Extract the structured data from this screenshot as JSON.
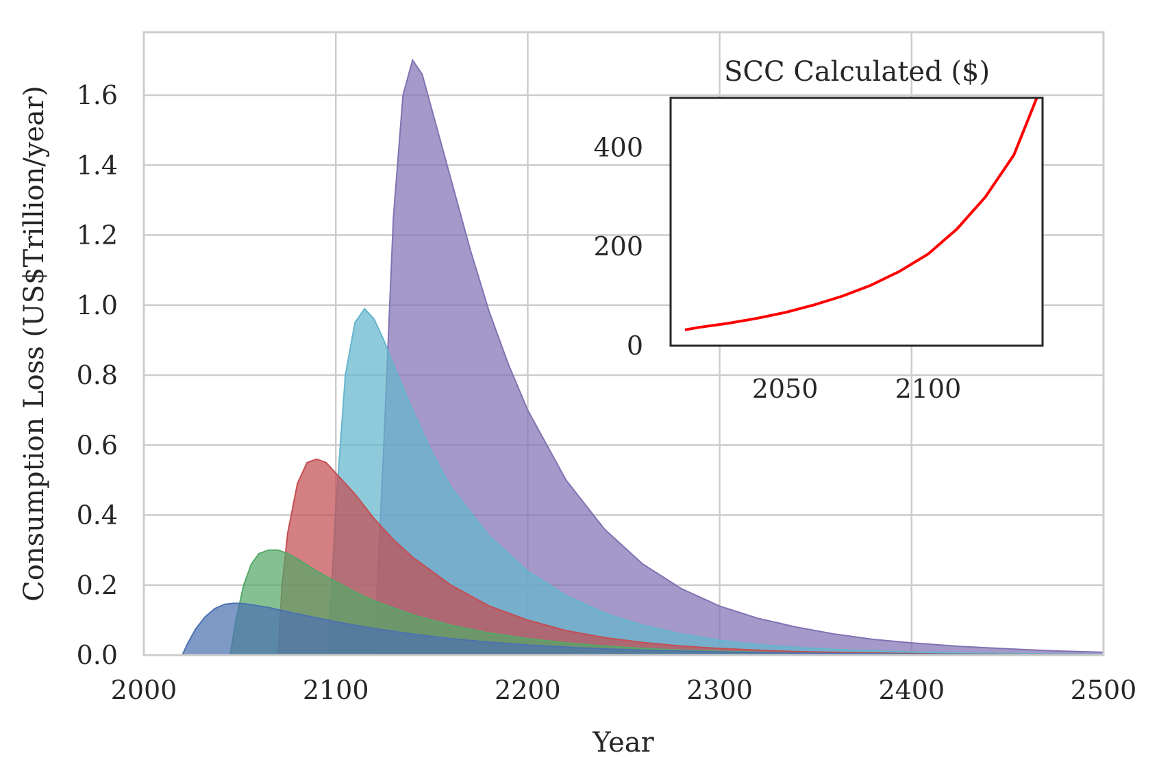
{
  "chart_data": [
    {
      "type": "area",
      "xlabel": "Year",
      "ylabel": "Consumption Loss (US$Trillion/year)",
      "xlim": [
        2000,
        2500
      ],
      "ylim": [
        0,
        1.78
      ],
      "xticks": [
        2000,
        2100,
        2200,
        2300,
        2400,
        2500
      ],
      "xtick_labels": [
        "2000",
        "2100",
        "2200",
        "2300",
        "2400",
        "2500"
      ],
      "yticks": [
        0,
        0.2,
        0.4,
        0.6,
        0.8,
        1.0,
        1.2,
        1.4,
        1.6
      ],
      "ytick_labels": [
        "0.0",
        "0.2",
        "0.4",
        "0.6",
        "0.8",
        "1.0",
        "1.2",
        "1.4",
        "1.6"
      ],
      "grid": true,
      "series": [
        {
          "color": "#8172b3",
          "x": [
            2120,
            2125,
            2130,
            2135,
            2140,
            2145,
            2150,
            2160,
            2170,
            2180,
            2190,
            2200,
            2220,
            2240,
            2260,
            2280,
            2300,
            2320,
            2340,
            2360,
            2380,
            2400,
            2425,
            2450,
            2475,
            2500
          ],
          "y": [
            0,
            0.6,
            1.25,
            1.6,
            1.7,
            1.66,
            1.56,
            1.36,
            1.16,
            0.98,
            0.83,
            0.7,
            0.5,
            0.36,
            0.26,
            0.19,
            0.14,
            0.105,
            0.08,
            0.06,
            0.045,
            0.035,
            0.025,
            0.018,
            0.012,
            0.008
          ]
        },
        {
          "color": "#64b5cd",
          "x": [
            2096,
            2100,
            2105,
            2110,
            2115,
            2120,
            2125,
            2130,
            2140,
            2150,
            2160,
            2180,
            2200,
            2220,
            2240,
            2260,
            2280,
            2300,
            2320,
            2340,
            2360,
            2380,
            2400,
            2440,
            2480,
            2500
          ],
          "y": [
            0,
            0.42,
            0.8,
            0.95,
            0.99,
            0.96,
            0.9,
            0.83,
            0.7,
            0.58,
            0.48,
            0.34,
            0.24,
            0.17,
            0.12,
            0.085,
            0.06,
            0.042,
            0.03,
            0.022,
            0.016,
            0.012,
            0.009,
            0.005,
            0.003,
            0.002
          ]
        },
        {
          "color": "#c44e52",
          "x": [
            2070,
            2072,
            2075,
            2080,
            2085,
            2090,
            2095,
            2100,
            2110,
            2120,
            2130,
            2140,
            2160,
            2180,
            2200,
            2220,
            2240,
            2260,
            2280,
            2300,
            2320,
            2340,
            2380,
            2420,
            2460,
            2500
          ],
          "y": [
            0,
            0.2,
            0.35,
            0.49,
            0.55,
            0.56,
            0.55,
            0.52,
            0.46,
            0.39,
            0.33,
            0.28,
            0.2,
            0.14,
            0.1,
            0.07,
            0.05,
            0.036,
            0.026,
            0.019,
            0.014,
            0.01,
            0.006,
            0.003,
            0.002,
            0.001
          ]
        },
        {
          "color": "#55a868",
          "x": [
            2045,
            2048,
            2052,
            2056,
            2060,
            2065,
            2070,
            2075,
            2080,
            2090,
            2100,
            2110,
            2120,
            2140,
            2160,
            2180,
            2200,
            2220,
            2240,
            2260,
            2280,
            2300,
            2340,
            2380,
            2440,
            2500
          ],
          "y": [
            0,
            0.1,
            0.2,
            0.26,
            0.29,
            0.3,
            0.3,
            0.29,
            0.275,
            0.24,
            0.21,
            0.18,
            0.155,
            0.115,
            0.085,
            0.063,
            0.047,
            0.035,
            0.026,
            0.019,
            0.014,
            0.011,
            0.006,
            0.003,
            0.0015,
            0.001
          ]
        },
        {
          "color": "#4c72b0",
          "x": [
            2020,
            2023,
            2027,
            2032,
            2037,
            2042,
            2047,
            2052,
            2057,
            2065,
            2075,
            2085,
            2100,
            2120,
            2140,
            2160,
            2180,
            2200,
            2230,
            2260,
            2300,
            2350,
            2400,
            2450,
            2500
          ],
          "y": [
            0,
            0.035,
            0.075,
            0.11,
            0.133,
            0.145,
            0.148,
            0.147,
            0.143,
            0.136,
            0.124,
            0.112,
            0.095,
            0.076,
            0.06,
            0.047,
            0.037,
            0.029,
            0.02,
            0.014,
            0.009,
            0.005,
            0.003,
            0.0015,
            0.001
          ]
        }
      ]
    },
    {
      "type": "line",
      "title": "SCC Calculated ($)",
      "xlim": [
        2010,
        2140
      ],
      "ylim": [
        0,
        500
      ],
      "xticks": [
        2050,
        2100
      ],
      "xtick_labels": [
        "2050",
        "2100"
      ],
      "yticks": [
        0,
        200,
        400
      ],
      "ytick_labels": [
        "0",
        "200",
        "400"
      ],
      "grid": false,
      "series": [
        {
          "color": "#ff0000",
          "x": [
            2015,
            2020,
            2030,
            2040,
            2050,
            2060,
            2070,
            2080,
            2090,
            2100,
            2110,
            2120,
            2130,
            2138
          ],
          "y": [
            32,
            37,
            45,
            55,
            67,
            82,
            100,
            122,
            150,
            185,
            235,
            300,
            385,
            500
          ]
        }
      ]
    }
  ]
}
